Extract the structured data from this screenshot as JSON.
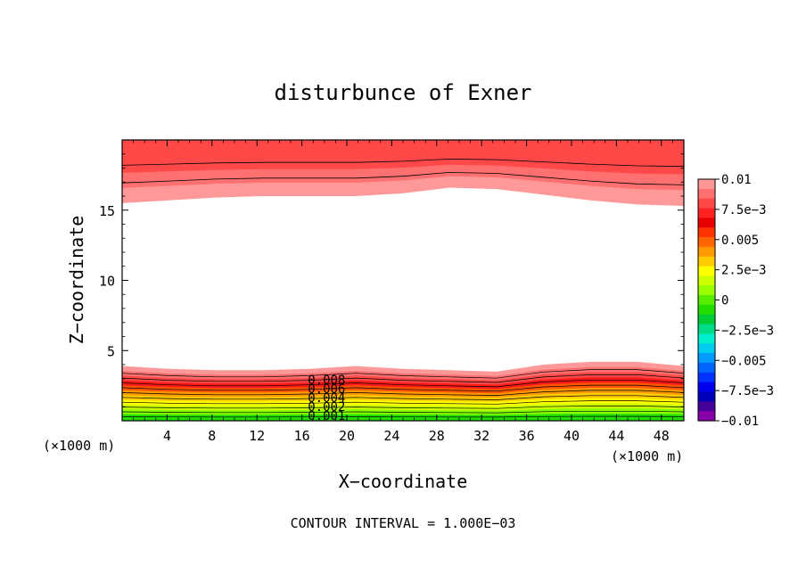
{
  "chart_data": {
    "type": "heatmap",
    "title": "disturbunce of Exner",
    "xlabel": "X−coordinate",
    "ylabel": "Z−coordinate",
    "x_unit_left": "(×1000 m)",
    "x_unit_right": "(×1000 m)",
    "xlim": [
      0,
      50
    ],
    "ylim": [
      0,
      20
    ],
    "x_ticks": [
      "4",
      "8",
      "12",
      "16",
      "20",
      "24",
      "28",
      "32",
      "36",
      "40",
      "44",
      "48"
    ],
    "y_ticks": [
      "5",
      "10",
      "15"
    ],
    "footer": "CONTOUR INTERVAL = 1.000E−03",
    "colorbar": {
      "range": [
        -0.01,
        0.01
      ],
      "labels": [
        "0.01",
        "7.5e−3",
        "0.005",
        "2.5e−3",
        "0",
        "−2.5e−3",
        "−0.005",
        "−7.5e−3",
        "−0.01"
      ],
      "colors": [
        "#ff9999",
        "#ff7070",
        "#ff4848",
        "#ff2020",
        "#e80000",
        "#ff3300",
        "#ff6600",
        "#ff9900",
        "#ffcc00",
        "#ffff00",
        "#ccff00",
        "#99ff00",
        "#55ee00",
        "#22dd00",
        "#00cc33",
        "#00dd88",
        "#00eecc",
        "#00ccee",
        "#0099ff",
        "#0066ff",
        "#0033ff",
        "#0000ee",
        "#0000bb",
        "#440099",
        "#8800aa"
      ]
    },
    "contour_labels": [
      "0.008",
      "0.006",
      "0.004",
      "0.002",
      "0.001"
    ],
    "upper_band": {
      "z_lower_edge": [
        15.5,
        15.7,
        15.9,
        16.0,
        16.0,
        16.0,
        16.2,
        16.6,
        16.5,
        16.1,
        15.7,
        15.4,
        15.3
      ],
      "levels": [
        0.01,
        0.009,
        0.008
      ],
      "colors": [
        "#ff9999",
        "#ff7070",
        "#ff4848"
      ]
    },
    "lower_band": {
      "z_top_edge": [
        3.9,
        3.7,
        3.6,
        3.6,
        3.7,
        3.9,
        3.7,
        3.6,
        3.5,
        4.0,
        4.2,
        4.2,
        3.9
      ],
      "levels": [
        0.01,
        0.009,
        0.008,
        0.007,
        0.006,
        0.005,
        0.004,
        0.003,
        0.002,
        0.001,
        0.0
      ],
      "colors": [
        "#ff9999",
        "#ff7070",
        "#ff4848",
        "#ff1a1a",
        "#ff5500",
        "#ff9900",
        "#ffcc00",
        "#ffff00",
        "#ccff00",
        "#88ff00",
        "#22dd00"
      ]
    },
    "x_samples": [
      0,
      4.17,
      8.33,
      12.5,
      16.67,
      20.83,
      25,
      29.17,
      33.33,
      37.5,
      41.67,
      45.83,
      50
    ]
  }
}
